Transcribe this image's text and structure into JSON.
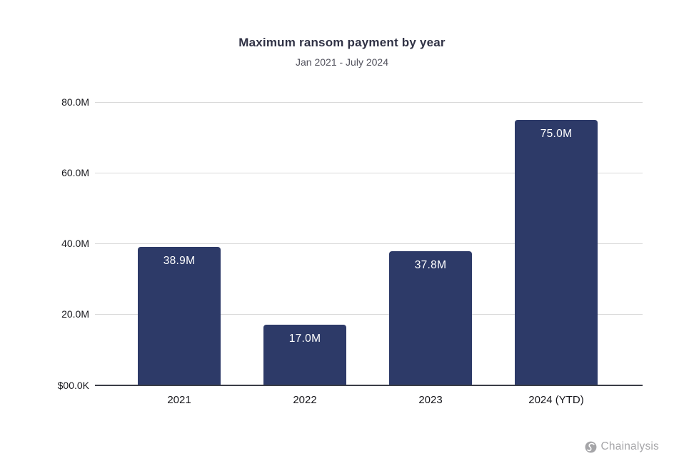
{
  "chart_data": {
    "type": "bar",
    "title": "Maximum ransom payment by year",
    "subtitle": "Jan 2021 - July 2024",
    "categories": [
      "2021",
      "2022",
      "2023",
      "2024 (YTD)"
    ],
    "values": [
      38.9,
      17.0,
      37.8,
      75.0
    ],
    "bar_labels": [
      "38.9M",
      "17.0M",
      "37.8M",
      "75.0M"
    ],
    "ylim": [
      0,
      80
    ],
    "y_ticks": [
      {
        "value": 80,
        "label": "80.0M"
      },
      {
        "value": 60,
        "label": "60.0M"
      },
      {
        "value": 40,
        "label": "40.0M"
      },
      {
        "value": 20,
        "label": "20.0M"
      },
      {
        "value": 0,
        "label": "$00.0K"
      }
    ],
    "grid": true,
    "legend": "none",
    "colors": {
      "bar": "#2d3a68",
      "bar_label": "#ffffff",
      "grid": "#d9d9d9",
      "axis": "#3a3d47",
      "tick_label": "#17171c",
      "title": "#303245",
      "subtitle": "#53535e"
    }
  },
  "footer": {
    "brand": "Chainalysis",
    "logo_icon": "chainalysis-circle-s-mark",
    "color": "#a5a5a8"
  }
}
